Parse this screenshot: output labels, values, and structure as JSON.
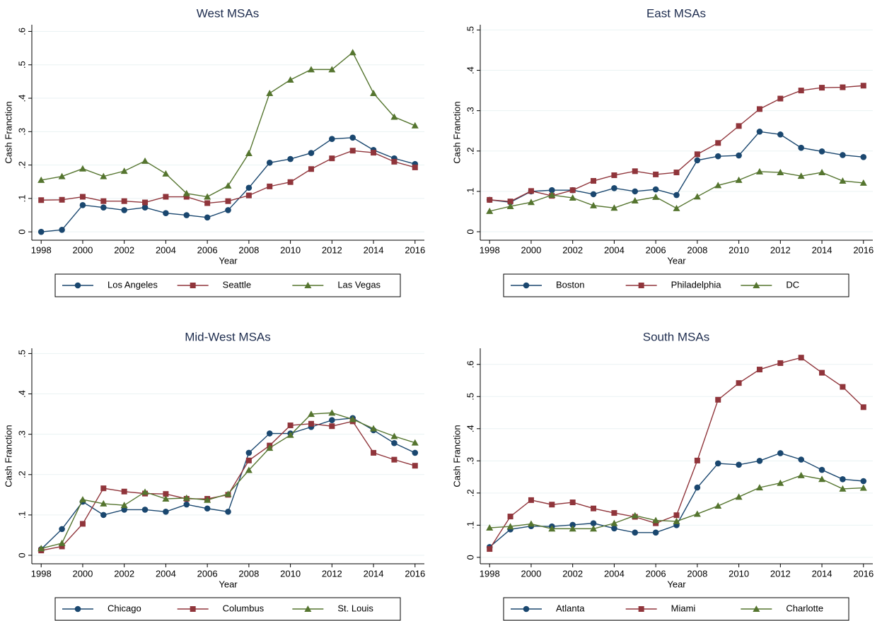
{
  "chart_data": [
    {
      "type": "line",
      "title": "West MSAs",
      "y_label": "Cash Franction",
      "x_label": "Year",
      "grid": true,
      "x": [
        1998,
        1999,
        2000,
        2001,
        2002,
        2003,
        2004,
        2005,
        2006,
        2007,
        2008,
        2009,
        2010,
        2011,
        2012,
        2013,
        2014,
        2015,
        2016
      ],
      "xlim": [
        1997.55,
        2016.45
      ],
      "xticks": [
        1998,
        2000,
        2002,
        2004,
        2006,
        2008,
        2010,
        2012,
        2014,
        2016
      ],
      "ylim": [
        -0.025,
        0.62
      ],
      "yticks": [
        0,
        {
          "value": 0.1,
          "label": ".1"
        },
        {
          "value": 0.2,
          "label": ".2"
        },
        {
          "value": 0.3,
          "label": ".3"
        },
        {
          "value": 0.4,
          "label": ".4"
        },
        {
          "value": 0.5,
          "label": ".5"
        },
        {
          "value": 0.6,
          "label": ".6"
        }
      ],
      "series": [
        {
          "name": "Los Angeles",
          "color": "#1a476f",
          "marker": "circle",
          "values": [
            0.0,
            0.006,
            0.08,
            0.073,
            0.065,
            0.073,
            0.056,
            0.05,
            0.043,
            0.065,
            0.132,
            0.207,
            0.218,
            0.236,
            0.278,
            0.282,
            0.245,
            0.22,
            0.203
          ]
        },
        {
          "name": "Seattle",
          "color": "#90353b",
          "marker": "square",
          "values": [
            0.095,
            0.096,
            0.105,
            0.092,
            0.092,
            0.088,
            0.105,
            0.105,
            0.086,
            0.092,
            0.109,
            0.136,
            0.149,
            0.188,
            0.22,
            0.243,
            0.237,
            0.21,
            0.193
          ]
        },
        {
          "name": "Las Vegas",
          "color": "#55752f",
          "marker": "triangle",
          "values": [
            0.155,
            0.166,
            0.189,
            0.166,
            0.182,
            0.212,
            0.174,
            0.115,
            0.105,
            0.138,
            0.235,
            0.415,
            0.455,
            0.486,
            0.486,
            0.537,
            0.415,
            0.344,
            0.318
          ]
        }
      ]
    },
    {
      "type": "line",
      "title": "East MSAs",
      "y_label": "Cash Franction",
      "x_label": "Year",
      "grid": true,
      "x": [
        1998,
        1999,
        2000,
        2001,
        2002,
        2003,
        2004,
        2005,
        2006,
        2007,
        2008,
        2009,
        2010,
        2011,
        2012,
        2013,
        2014,
        2015,
        2016
      ],
      "xlim": [
        1997.55,
        2016.45
      ],
      "xticks": [
        1998,
        2000,
        2002,
        2004,
        2006,
        2008,
        2010,
        2012,
        2014,
        2016
      ],
      "ylim": [
        -0.021,
        0.513
      ],
      "yticks": [
        0,
        {
          "value": 0.1,
          "label": ".1"
        },
        {
          "value": 0.2,
          "label": ".2"
        },
        {
          "value": 0.3,
          "label": ".3"
        },
        {
          "value": 0.4,
          "label": ".4"
        },
        {
          "value": 0.5,
          "label": ".5"
        }
      ],
      "series": [
        {
          "name": "Boston",
          "color": "#1a476f",
          "marker": "circle",
          "values": [
            0.079,
            0.073,
            0.1,
            0.103,
            0.103,
            0.093,
            0.108,
            0.1,
            0.105,
            0.091,
            0.177,
            0.187,
            0.189,
            0.248,
            0.241,
            0.208,
            0.199,
            0.19,
            0.185
          ]
        },
        {
          "name": "Philadelphia",
          "color": "#90353b",
          "marker": "square",
          "values": [
            0.079,
            0.075,
            0.101,
            0.089,
            0.103,
            0.126,
            0.14,
            0.15,
            0.142,
            0.147,
            0.192,
            0.22,
            0.262,
            0.304,
            0.33,
            0.35,
            0.357,
            0.358,
            0.362
          ]
        },
        {
          "name": "DC",
          "color": "#55752f",
          "marker": "triangle",
          "values": [
            0.051,
            0.063,
            0.073,
            0.091,
            0.084,
            0.065,
            0.059,
            0.077,
            0.086,
            0.058,
            0.087,
            0.115,
            0.128,
            0.149,
            0.147,
            0.138,
            0.147,
            0.126,
            0.121
          ]
        }
      ]
    },
    {
      "type": "line",
      "title": "Mid-West MSAs",
      "y_label": "Cash Franction",
      "x_label": "Year",
      "grid": true,
      "x": [
        1998,
        1999,
        2000,
        2001,
        2002,
        2003,
        2004,
        2005,
        2006,
        2007,
        2008,
        2009,
        2010,
        2011,
        2012,
        2013,
        2014,
        2015,
        2016
      ],
      "xlim": [
        1997.55,
        2016.45
      ],
      "xticks": [
        1998,
        2000,
        2002,
        2004,
        2006,
        2008,
        2010,
        2012,
        2014,
        2016
      ],
      "ylim": [
        -0.021,
        0.513
      ],
      "yticks": [
        0,
        {
          "value": 0.1,
          "label": ".1"
        },
        {
          "value": 0.2,
          "label": ".2"
        },
        {
          "value": 0.3,
          "label": ".3"
        },
        {
          "value": 0.4,
          "label": ".4"
        },
        {
          "value": 0.5,
          "label": ".5"
        }
      ],
      "series": [
        {
          "name": "Chicago",
          "color": "#1a476f",
          "marker": "circle",
          "values": [
            0.015,
            0.065,
            0.133,
            0.1,
            0.113,
            0.113,
            0.108,
            0.126,
            0.116,
            0.108,
            0.254,
            0.302,
            0.302,
            0.318,
            0.335,
            0.34,
            0.31,
            0.278,
            0.254
          ]
        },
        {
          "name": "Columbus",
          "color": "#90353b",
          "marker": "square",
          "values": [
            0.012,
            0.022,
            0.078,
            0.166,
            0.158,
            0.153,
            0.152,
            0.14,
            0.14,
            0.15,
            0.235,
            0.272,
            0.322,
            0.326,
            0.32,
            0.332,
            0.254,
            0.237,
            0.222
          ]
        },
        {
          "name": "St. Louis",
          "color": "#55752f",
          "marker": "triangle",
          "values": [
            0.017,
            0.03,
            0.138,
            0.128,
            0.124,
            0.157,
            0.14,
            0.142,
            0.137,
            0.152,
            0.211,
            0.266,
            0.298,
            0.35,
            0.353,
            0.337,
            0.314,
            0.295,
            0.279
          ]
        }
      ]
    },
    {
      "type": "line",
      "title": "South MSAs",
      "y_label": "Cash Franction",
      "x_label": "Year",
      "grid": true,
      "x": [
        1998,
        1999,
        2000,
        2001,
        2002,
        2003,
        2004,
        2005,
        2006,
        2007,
        2008,
        2009,
        2010,
        2011,
        2012,
        2013,
        2014,
        2015,
        2016
      ],
      "xlim": [
        1997.55,
        2016.45
      ],
      "xticks": [
        1998,
        2000,
        2002,
        2004,
        2006,
        2008,
        2010,
        2012,
        2014,
        2016
      ],
      "ylim": [
        -0.02,
        0.65
      ],
      "yticks": [
        0,
        {
          "value": 0.1,
          "label": ".1"
        },
        {
          "value": 0.2,
          "label": ".2"
        },
        {
          "value": 0.3,
          "label": ".3"
        },
        {
          "value": 0.4,
          "label": ".4"
        },
        {
          "value": 0.5,
          "label": ".5"
        },
        {
          "value": 0.6,
          "label": ".6"
        }
      ],
      "series": [
        {
          "name": "Atlanta",
          "color": "#1a476f",
          "marker": "circle",
          "values": [
            0.032,
            0.087,
            0.097,
            0.096,
            0.101,
            0.106,
            0.09,
            0.077,
            0.077,
            0.1,
            0.217,
            0.292,
            0.288,
            0.3,
            0.324,
            0.304,
            0.272,
            0.243,
            0.237
          ]
        },
        {
          "name": "Miami",
          "color": "#90353b",
          "marker": "square",
          "values": [
            0.026,
            0.127,
            0.178,
            0.164,
            0.171,
            0.152,
            0.138,
            0.126,
            0.106,
            0.131,
            0.301,
            0.49,
            0.542,
            0.584,
            0.604,
            0.621,
            0.574,
            0.53,
            0.467
          ]
        },
        {
          "name": "Charlotte",
          "color": "#55752f",
          "marker": "triangle",
          "values": [
            0.092,
            0.096,
            0.104,
            0.089,
            0.089,
            0.089,
            0.106,
            0.13,
            0.115,
            0.112,
            0.135,
            0.16,
            0.188,
            0.217,
            0.231,
            0.255,
            0.243,
            0.213,
            0.216
          ]
        }
      ]
    }
  ]
}
